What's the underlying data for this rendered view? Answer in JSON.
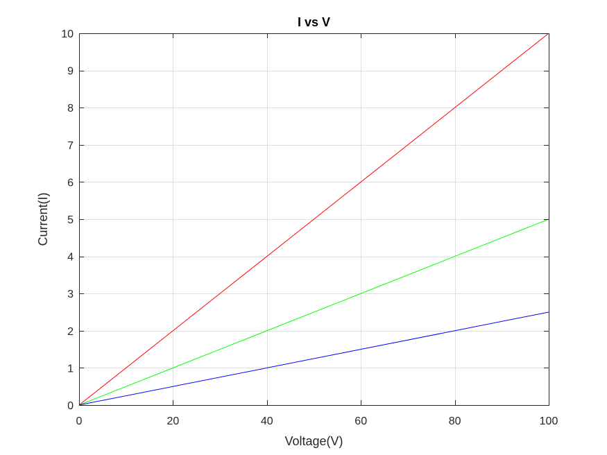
{
  "chart_data": {
    "type": "line",
    "title": "I vs V",
    "xlabel": "Voltage(V)",
    "ylabel": "Current(I)",
    "xlim": [
      0,
      100
    ],
    "ylim": [
      0,
      10
    ],
    "xticks": [
      0,
      20,
      40,
      60,
      80,
      100
    ],
    "yticks": [
      0,
      1,
      2,
      3,
      4,
      5,
      6,
      7,
      8,
      9,
      10
    ],
    "grid": true,
    "legend": "none",
    "series": [
      {
        "color": "#ff0000",
        "x": [
          0,
          100
        ],
        "y": [
          0,
          10
        ]
      },
      {
        "color": "#00ff00",
        "x": [
          0,
          100
        ],
        "y": [
          0,
          5
        ]
      },
      {
        "color": "#0000ff",
        "x": [
          0,
          100
        ],
        "y": [
          0,
          2.5
        ]
      }
    ]
  }
}
